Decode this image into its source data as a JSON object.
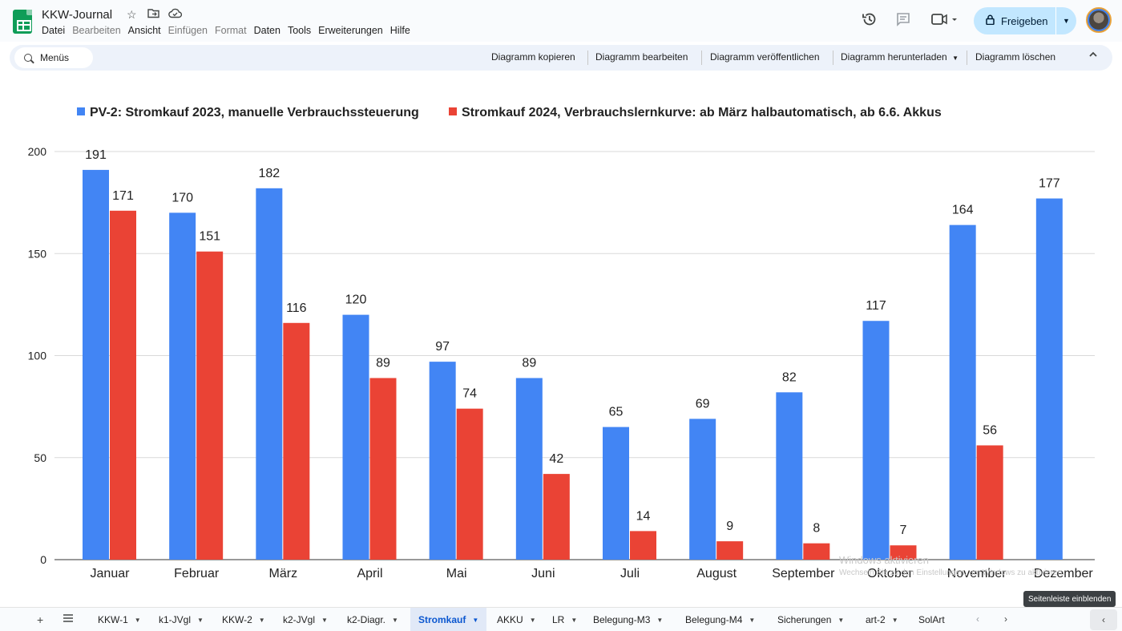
{
  "doc": {
    "title": "KKW-Journal"
  },
  "menubar": [
    "Datei",
    "Bearbeiten",
    "Ansicht",
    "Einfügen",
    "Format",
    "Daten",
    "Tools",
    "Erweiterungen",
    "Hilfe"
  ],
  "menubar_disabled": [
    "Bearbeiten",
    "Einfügen",
    "Format"
  ],
  "header": {
    "share_label": "Freigeben"
  },
  "toolbar": {
    "search_label": "Menüs",
    "buttons": [
      "Diagramm kopieren",
      "Diagramm bearbeiten",
      "Diagramm veröffentlichen",
      "Diagramm herunterladen",
      "Diagramm löschen"
    ]
  },
  "chart_data": {
    "type": "bar",
    "categories": [
      "Januar",
      "Februar",
      "März",
      "April",
      "Mai",
      "Juni",
      "Juli",
      "August",
      "September",
      "Oktober",
      "November",
      "Dezember"
    ],
    "series": [
      {
        "name": "PV-2: Stromkauf 2023, manuelle Verbrauchssteuerung",
        "color": "#4285f4",
        "values": [
          191,
          170,
          182,
          120,
          97,
          89,
          65,
          69,
          82,
          117,
          164,
          177
        ]
      },
      {
        "name": "Stromkauf 2024, Verbrauchslernkurve: ab März halbautomatisch, ab 6.6. Akkus",
        "color": "#ea4335",
        "values": [
          171,
          151,
          116,
          89,
          74,
          42,
          14,
          9,
          8,
          7,
          56,
          null
        ]
      }
    ],
    "yticks": [
      0,
      50,
      100,
      150,
      200
    ],
    "ylim": [
      0,
      200
    ],
    "grid": true,
    "legend": "top",
    "data_labels": true
  },
  "watermark": {
    "line1": "Windows aktivieren",
    "line2": "Wechseln Sie zu den Einstellungen, um Windows zu aktivieren."
  },
  "tabs": {
    "sheets": [
      "KKW-1",
      "k1-JVgl",
      "KKW-2",
      "k2-JVgl",
      "k2-Diagr.",
      "Stromkauf",
      "AKKU",
      "LR",
      "Belegung-M3",
      "Belegung-M4",
      "Sicherungen",
      "art-2",
      "SolArt"
    ],
    "active": "Stromkauf",
    "tooltip": "Seitenleiste einblenden"
  }
}
